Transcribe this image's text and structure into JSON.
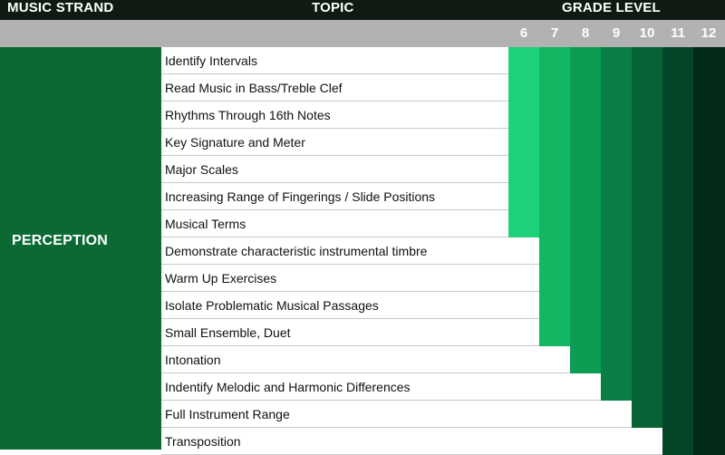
{
  "header": {
    "strand_label": "MUSIC STRAND",
    "topic_label": "TOPIC",
    "grade_level_label": "GRADE LEVEL"
  },
  "grades": [
    "6",
    "7",
    "8",
    "9",
    "10",
    "11",
    "12"
  ],
  "strand": "PERCEPTION",
  "topics": [
    {
      "label": "Identify Intervals",
      "start_grade": "6"
    },
    {
      "label": "Read Music in Bass/Treble Clef",
      "start_grade": "6"
    },
    {
      "label": "Rhythms Through 16th Notes",
      "start_grade": "6"
    },
    {
      "label": "Key Signature and Meter",
      "start_grade": "6"
    },
    {
      "label": "Major Scales",
      "start_grade": "6"
    },
    {
      "label": "Increasing Range of Fingerings / Slide Positions",
      "start_grade": "6"
    },
    {
      "label": "Musical Terms",
      "start_grade": "6"
    },
    {
      "label": "Demonstrate characteristic instrumental timbre",
      "start_grade": "7"
    },
    {
      "label": "Warm Up Exercises",
      "start_grade": "7"
    },
    {
      "label": "Isolate Problematic Musical Passages",
      "start_grade": "7"
    },
    {
      "label": "Small Ensemble, Duet",
      "start_grade": "7"
    },
    {
      "label": "Intonation",
      "start_grade": "8"
    },
    {
      "label": "Indentify Melodic and Harmonic Differences",
      "start_grade": "9"
    },
    {
      "label": "Full Instrument Range",
      "start_grade": "10"
    },
    {
      "label": "Transposition",
      "start_grade": "11"
    }
  ],
  "colors": {
    "header_bg": "#0f1b12",
    "grade_bar_bg": "#b2b2b2",
    "strand_bg": "#0b6934",
    "grade_cells": [
      "#1fd17a",
      "#12b663",
      "#0d9c54",
      "#0a7f45",
      "#076236",
      "#054628",
      "#032a18"
    ]
  }
}
